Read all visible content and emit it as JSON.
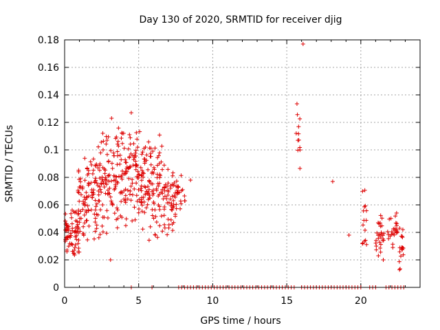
{
  "chart_data": {
    "type": "scatter",
    "title": "Day 130 of 2020, SRMTID for receiver djig",
    "xlabel": "GPS time / hours",
    "ylabel": "SRMTID / TECUs",
    "xlim": [
      0,
      24
    ],
    "ylim": [
      0,
      0.18
    ],
    "xticks": [
      "0",
      "5",
      "10",
      "15",
      "20"
    ],
    "yticks": [
      "0",
      "0.02",
      "0.04",
      "0.06",
      "0.08",
      "0.1",
      "0.12",
      "0.14",
      "0.16",
      "0.18"
    ],
    "grid": true,
    "marker": "+",
    "color": "#dd0000",
    "clusters": [
      {
        "x_range": [
          0,
          1
        ],
        "y_range": [
          0.018,
          0.06
        ],
        "count": 70
      },
      {
        "x_range": [
          0.9,
          2.4
        ],
        "y_range": [
          0.03,
          0.105
        ],
        "count": 110
      },
      {
        "x_range": [
          2.4,
          4
        ],
        "y_range": [
          0.035,
          0.125
        ],
        "count": 110
      },
      {
        "x_range": [
          4,
          5.5
        ],
        "y_range": [
          0.04,
          0.12
        ],
        "count": 110
      },
      {
        "x_range": [
          5.5,
          6.6
        ],
        "y_range": [
          0.03,
          0.115
        ],
        "count": 80
      },
      {
        "x_range": [
          6.6,
          7.6
        ],
        "y_range": [
          0.035,
          0.095
        ],
        "count": 60
      },
      {
        "x_range": [
          7.6,
          8.2
        ],
        "y_range": [
          0.055,
          0.085
        ],
        "count": 15
      },
      {
        "x_range": [
          15.6,
          15.9
        ],
        "y_range": [
          0.075,
          0.14
        ],
        "count": 12
      },
      {
        "x_range": [
          20.1,
          20.4
        ],
        "y_range": [
          0.02,
          0.078
        ],
        "count": 15
      },
      {
        "x_range": [
          21,
          21.6
        ],
        "y_range": [
          0.018,
          0.055
        ],
        "count": 30
      },
      {
        "x_range": [
          21.8,
          22.5
        ],
        "y_range": [
          0.028,
          0.058
        ],
        "count": 25
      },
      {
        "x_range": [
          22.6,
          22.9
        ],
        "y_range": [
          0.008,
          0.046
        ],
        "count": 18
      }
    ],
    "points": [
      [
        8.5,
        0.078
      ],
      [
        16.1,
        0.177
      ],
      [
        18.1,
        0.077
      ],
      [
        19.2,
        0.038
      ],
      [
        4.5,
        0.127
      ],
      [
        3.1,
        0.02
      ]
    ],
    "baseline_ranges": [
      [
        4.5,
        4.6
      ],
      [
        5.9,
        6.0
      ],
      [
        7.7,
        15.5
      ],
      [
        16.0,
        20.0
      ],
      [
        20.6,
        21.0
      ],
      [
        21.7,
        22.9
      ]
    ]
  }
}
